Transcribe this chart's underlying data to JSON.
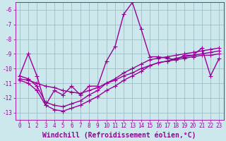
{
  "series": [
    {
      "x": [
        0,
        1,
        2,
        3,
        4,
        5,
        6,
        7,
        8,
        9,
        10,
        11,
        12,
        13,
        14,
        15,
        16,
        17,
        18,
        19,
        20,
        21,
        22,
        23
      ],
      "y": [
        -10.5,
        -9.0,
        -10.5,
        -12.5,
        -11.5,
        -11.8,
        -11.2,
        -11.8,
        -11.2,
        -11.2,
        -9.5,
        -8.5,
        -6.3,
        -5.5,
        -7.3,
        -9.2,
        -9.2,
        -9.3,
        -9.4,
        -9.1,
        -9.1,
        -8.6,
        -10.5,
        -9.3
      ]
    },
    {
      "x": [
        0,
        1,
        2,
        3,
        4,
        5,
        6,
        7,
        8,
        9,
        10,
        11,
        12,
        13,
        14,
        15,
        16,
        17,
        18,
        19,
        20,
        21,
        22,
        23
      ],
      "y": [
        -10.7,
        -10.8,
        -11.0,
        -11.2,
        -11.3,
        -11.5,
        -11.6,
        -11.7,
        -11.5,
        -11.3,
        -11.0,
        -10.8,
        -10.5,
        -10.3,
        -10.0,
        -9.8,
        -9.6,
        -9.5,
        -9.4,
        -9.3,
        -9.2,
        -9.1,
        -9.1,
        -9.0
      ]
    },
    {
      "x": [
        0,
        1,
        2,
        3,
        4,
        5,
        6,
        7,
        8,
        9,
        10,
        11,
        12,
        13,
        14,
        15,
        16,
        17,
        18,
        19,
        20,
        21,
        22,
        23
      ],
      "y": [
        -10.8,
        -11.0,
        -11.5,
        -12.5,
        -12.8,
        -12.9,
        -12.7,
        -12.5,
        -12.2,
        -11.9,
        -11.5,
        -11.2,
        -10.8,
        -10.5,
        -10.2,
        -9.8,
        -9.6,
        -9.5,
        -9.3,
        -9.2,
        -9.1,
        -9.0,
        -8.9,
        -8.8
      ]
    },
    {
      "x": [
        0,
        1,
        2,
        3,
        4,
        5,
        6,
        7,
        8,
        9,
        10,
        11,
        12,
        13,
        14,
        15,
        16,
        17,
        18,
        19,
        20,
        21,
        22,
        23
      ],
      "y": [
        -10.5,
        -10.7,
        -11.2,
        -12.3,
        -12.5,
        -12.6,
        -12.4,
        -12.2,
        -11.8,
        -11.5,
        -11.0,
        -10.7,
        -10.3,
        -10.0,
        -9.7,
        -9.4,
        -9.3,
        -9.2,
        -9.1,
        -9.0,
        -8.9,
        -8.8,
        -8.7,
        -8.6
      ]
    }
  ],
  "line_color": "#990099",
  "marker": "+",
  "marker_size": 4,
  "bg_color": "#cce8ec",
  "grid_color": "#9bbfc5",
  "xlabel": "Windchill (Refroidissement éolien,°C)",
  "xlim": [
    -0.5,
    23.5
  ],
  "ylim": [
    -13.5,
    -5.5
  ],
  "yticks": [
    -13,
    -12,
    -11,
    -10,
    -9,
    -8,
    -7,
    -6
  ],
  "xticks": [
    0,
    1,
    2,
    3,
    4,
    5,
    6,
    7,
    8,
    9,
    10,
    11,
    12,
    13,
    14,
    15,
    16,
    17,
    18,
    19,
    20,
    21,
    22,
    23
  ],
  "tick_label_fontsize": 5.5,
  "xlabel_fontsize": 7.0,
  "line_width": 1.0
}
